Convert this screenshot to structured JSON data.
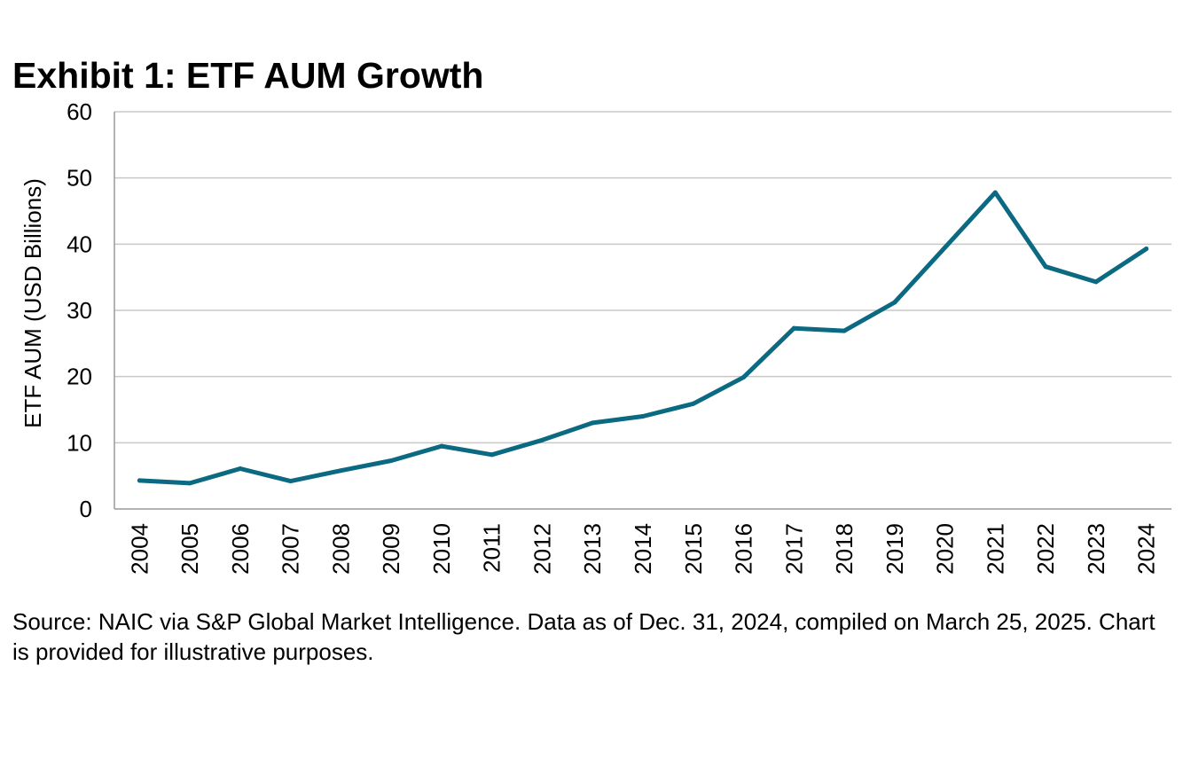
{
  "title": "Exhibit 1: ETF AUM Growth",
  "source_note": "Source: NAIC via S&P Global Market Intelligence.  Data as of Dec. 31, 2024, compiled on March 25, 2025.  Chart is provided for illustrative purposes.",
  "colors": {
    "line": "#0b6a82",
    "grid": "#c8c8c8",
    "axis": "#9a9a9a"
  },
  "chart_data": {
    "type": "line",
    "title": "Exhibit 1: ETF AUM Growth",
    "xlabel": "",
    "ylabel": "ETF AUM (USD Billions)",
    "ylim": [
      0,
      60
    ],
    "yticks": [
      0,
      10,
      20,
      30,
      40,
      50,
      60
    ],
    "grid": true,
    "categories": [
      "2004",
      "2005",
      "2006",
      "2007",
      "2008",
      "2009",
      "2010",
      "2011",
      "2012",
      "2013",
      "2014",
      "2015",
      "2016",
      "2017",
      "2018",
      "2019",
      "2020",
      "2021",
      "2022",
      "2023",
      "2024"
    ],
    "series": [
      {
        "name": "ETF AUM",
        "values": [
          4.3,
          3.9,
          6.1,
          4.2,
          5.8,
          7.3,
          9.5,
          8.2,
          10.4,
          13.0,
          14.0,
          15.9,
          19.9,
          27.3,
          26.9,
          31.2,
          39.5,
          47.8,
          36.6,
          34.3,
          39.3
        ]
      }
    ]
  }
}
